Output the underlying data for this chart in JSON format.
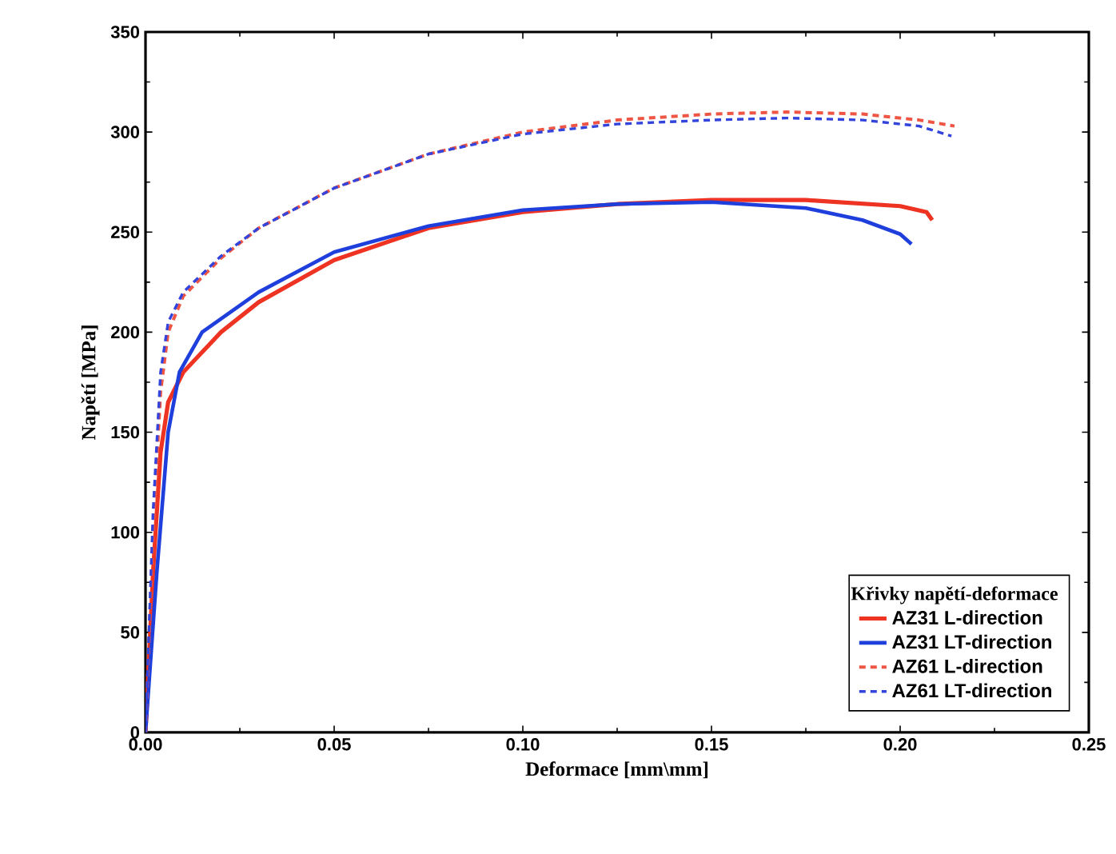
{
  "chart_data": {
    "type": "line",
    "xlabel": "Deformace [mm\\mm]",
    "ylabel": "Napětí [MPa]",
    "legend_title": "Křivky napětí-deformace",
    "xlim": [
      0,
      0.25
    ],
    "ylim": [
      0,
      350
    ],
    "xticks": [
      {
        "value": 0,
        "label": "0.00"
      },
      0.05,
      {
        "value": 0.1,
        "label": "0.10"
      },
      0.15,
      {
        "value": 0.2,
        "label": "0.20"
      },
      0.25
    ],
    "yticks": [
      0,
      50,
      100,
      150,
      200,
      250,
      300,
      350
    ],
    "legend": "bottom right",
    "grid": false,
    "marker": "none",
    "series": [
      {
        "name": "AZ31 L-direction",
        "color": "#ee3322",
        "line_style": "solid",
        "x": [
          0,
          0.002,
          0.004,
          0.006,
          0.01,
          0.02,
          0.03,
          0.05,
          0.075,
          0.1,
          0.125,
          0.15,
          0.175,
          0.2,
          0.207,
          0.2085
        ],
        "values": [
          0,
          80,
          140,
          165,
          180,
          200,
          215,
          236,
          252,
          260,
          264,
          266,
          266,
          263,
          260,
          256
        ]
      },
      {
        "name": "AZ31 LT-direction",
        "color": "#1f3fdd",
        "line_style": "solid",
        "x": [
          0,
          0.003,
          0.006,
          0.009,
          0.015,
          0.03,
          0.05,
          0.075,
          0.1,
          0.125,
          0.15,
          0.175,
          0.19,
          0.2,
          0.203
        ],
        "values": [
          0,
          80,
          150,
          180,
          200,
          220,
          240,
          253,
          261,
          264,
          265,
          262,
          256,
          249,
          244
        ]
      },
      {
        "name": "AZ61 L-direction",
        "color": "#ee5544",
        "line_style": "dashed",
        "x": [
          0,
          0.002,
          0.004,
          0.006,
          0.01,
          0.02,
          0.03,
          0.05,
          0.075,
          0.1,
          0.125,
          0.15,
          0.17,
          0.19,
          0.205,
          0.2144
        ],
        "values": [
          0,
          100,
          170,
          200,
          218,
          237,
          252,
          272,
          289,
          300,
          306,
          309,
          310,
          309,
          306,
          303
        ]
      },
      {
        "name": "AZ61 LT-direction",
        "color": "#3344dd",
        "line_style": "dashed",
        "x": [
          0,
          0.002,
          0.004,
          0.006,
          0.01,
          0.02,
          0.03,
          0.05,
          0.075,
          0.1,
          0.125,
          0.15,
          0.17,
          0.19,
          0.205,
          0.2136
        ],
        "values": [
          0,
          110,
          180,
          205,
          220,
          238,
          252,
          272,
          289,
          299,
          304,
          306,
          307,
          306,
          303,
          298
        ]
      }
    ]
  }
}
